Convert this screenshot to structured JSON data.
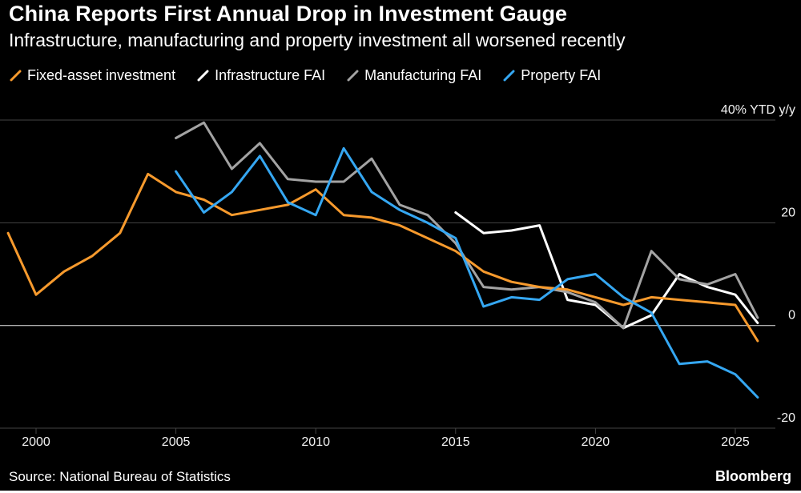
{
  "chart_data": {
    "type": "line",
    "title": "China Reports First Annual Drop in Investment Gauge",
    "subtitle": "Infrastructure, manufacturing and property investment all worsened recently",
    "source": "Source: National Bureau of Statistics",
    "brand": "Bloomberg",
    "legend_position": "top",
    "grid": true,
    "colors": {
      "background": "#000000",
      "grid": "#444444",
      "zero_line": "#e8e8e8",
      "axis_text": "#f2f2f2"
    },
    "x_axis": {
      "ticks": [
        2000,
        2005,
        2010,
        2015,
        2020,
        2025
      ],
      "range": [
        1998.8,
        2026.5
      ]
    },
    "y_axis": {
      "range": [
        -24,
        42
      ],
      "unit": "% YTD y/y"
    },
    "y_ticks": [
      {
        "value": 40,
        "label": "40% YTD y/y"
      },
      {
        "value": 20,
        "label": "20"
      },
      {
        "value": 0,
        "label": "0"
      },
      {
        "value": -20,
        "label": "-20"
      }
    ],
    "series": [
      {
        "name": "Fixed-asset investment",
        "color": "#F79A2D",
        "x": [
          1999,
          2000,
          2001,
          2002,
          2003,
          2004,
          2005,
          2006,
          2007,
          2008,
          2009,
          2010,
          2011,
          2012,
          2013,
          2014,
          2015,
          2016,
          2017,
          2018,
          2019,
          2020,
          2021,
          2022,
          2023,
          2024,
          2025,
          2025.8
        ],
        "values": [
          18,
          6,
          10.5,
          13.5,
          18,
          29.5,
          26,
          24.5,
          21.5,
          22.5,
          23.5,
          26.5,
          21.5,
          21,
          19.5,
          17,
          14.5,
          10.5,
          8.5,
          7.5,
          7,
          5.5,
          4,
          5.5,
          5,
          4.5,
          4,
          -3
        ]
      },
      {
        "name": "Infrastructure FAI",
        "color": "#FFFFFF",
        "x": [
          2015,
          2016,
          2017,
          2018,
          2019,
          2020,
          2021,
          2022,
          2023,
          2024,
          2025,
          2025.8
        ],
        "values": [
          22,
          18,
          18.5,
          19.5,
          5,
          4,
          -0.5,
          2,
          10,
          7.5,
          6,
          0.5
        ]
      },
      {
        "name": "Manufacturing FAI",
        "color": "#A3A3A3",
        "x": [
          2005,
          2006,
          2007,
          2008,
          2009,
          2010,
          2011,
          2012,
          2013,
          2014,
          2015,
          2016,
          2017,
          2018,
          2019,
          2020,
          2021,
          2022,
          2023,
          2024,
          2025,
          2025.8
        ],
        "values": [
          36.5,
          39.5,
          30.5,
          35.5,
          28.5,
          28,
          28,
          32.5,
          23.5,
          21.5,
          16,
          7.5,
          7,
          7.5,
          6.5,
          4.5,
          -0.5,
          14.5,
          9,
          8,
          10,
          1.5
        ]
      },
      {
        "name": "Property FAI",
        "color": "#35A7F2",
        "x": [
          2005,
          2006,
          2007,
          2008,
          2009,
          2010,
          2011,
          2012,
          2013,
          2014,
          2015,
          2016,
          2017,
          2018,
          2019,
          2020,
          2021,
          2022,
          2023,
          2024,
          2025,
          2025.8
        ],
        "values": [
          30,
          22,
          26,
          33,
          24,
          21.5,
          34.5,
          26,
          22.5,
          20,
          17,
          3.7,
          5.5,
          5,
          9,
          10,
          5.5,
          2.5,
          -7.5,
          -7,
          -9.5,
          -14
        ]
      }
    ]
  }
}
